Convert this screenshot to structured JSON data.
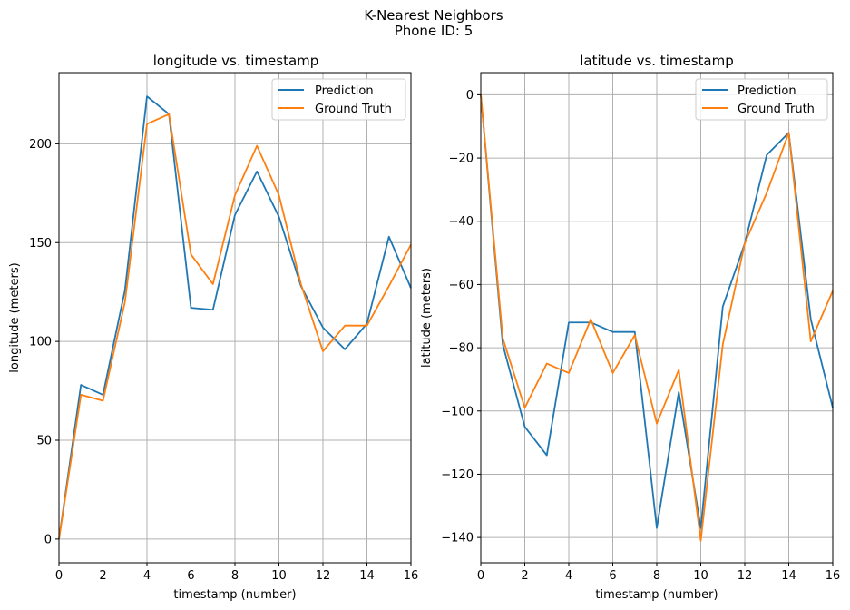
{
  "figure": {
    "suptitle_line1": "K-Nearest Neighbors",
    "suptitle_line2": "Phone ID: 5"
  },
  "colors": {
    "prediction": "#1f77b4",
    "ground_truth": "#ff7f0e",
    "grid": "#b0b0b0"
  },
  "chart_data": [
    {
      "type": "line",
      "title": "longitude vs. timestamp",
      "xlabel": "timestamp (number)",
      "ylabel": "longitude (meters)",
      "xlim": [
        0,
        16
      ],
      "ylim": [
        -12,
        236
      ],
      "xticks": [
        0,
        2,
        4,
        6,
        8,
        10,
        12,
        14,
        16
      ],
      "yticks": [
        0,
        50,
        100,
        150,
        200
      ],
      "grid": true,
      "legend_position": "upper right",
      "x": [
        0,
        1,
        2,
        3,
        4,
        5,
        6,
        7,
        8,
        9,
        10,
        11,
        12,
        13,
        14,
        15,
        16
      ],
      "series": [
        {
          "name": "Prediction",
          "values": [
            0,
            78,
            73,
            126,
            224,
            215,
            117,
            116,
            164,
            186,
            163,
            128,
            107,
            96,
            109,
            153,
            127
          ]
        },
        {
          "name": "Ground Truth",
          "values": [
            0,
            73,
            70,
            120,
            210,
            215,
            144,
            129,
            174,
            199,
            174,
            129,
            95,
            108,
            108,
            128,
            149
          ]
        }
      ]
    },
    {
      "type": "line",
      "title": "latitude vs. timestamp",
      "xlabel": "timestamp (number)",
      "ylabel": "latitude (meters)",
      "xlim": [
        0,
        16
      ],
      "ylim": [
        -148,
        7
      ],
      "xticks": [
        0,
        2,
        4,
        6,
        8,
        10,
        12,
        14,
        16
      ],
      "yticks": [
        0,
        -20,
        -40,
        -60,
        -80,
        -100,
        -120,
        -140
      ],
      "grid": true,
      "legend_position": "upper right",
      "x": [
        0,
        1,
        2,
        3,
        4,
        5,
        6,
        7,
        8,
        9,
        10,
        11,
        12,
        13,
        14,
        15,
        16
      ],
      "series": [
        {
          "name": "Prediction",
          "values": [
            0,
            -79,
            -105,
            -114,
            -72,
            -72,
            -75,
            -75,
            -137,
            -94,
            -137,
            -67,
            -47,
            -19,
            -12,
            -71,
            -99
          ]
        },
        {
          "name": "Ground Truth",
          "values": [
            0,
            -77,
            -99,
            -85,
            -88,
            -71,
            -88,
            -76,
            -104,
            -87,
            -141,
            -79,
            -47,
            -31,
            -12,
            -78,
            -62
          ]
        }
      ]
    }
  ]
}
